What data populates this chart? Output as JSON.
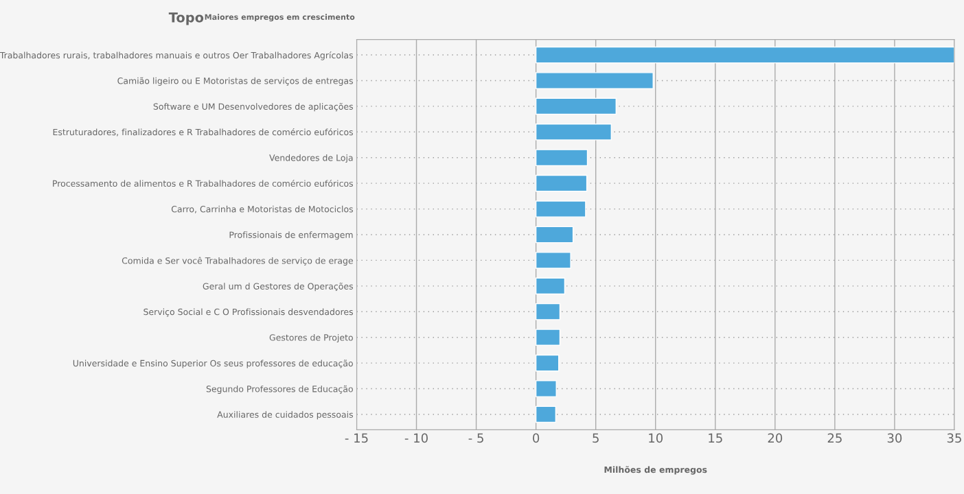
{
  "chart_data": {
    "type": "bar",
    "orientation": "horizontal",
    "title": "Topo",
    "subtitle": "Maiores empregos em crescimento",
    "xlabel": "Milhões de empregos",
    "categories": [
      "Trabalhadores rurais, trabalhadores manuais e outros Oer Trabalhadores Agrícolas",
      "Camião ligeiro ou E Motoristas de serviços de entregas",
      "Software e UM Desenvolvedores de aplicações",
      "Estruturadores, finalizadores e R Trabalhadores de comércio eufóricos",
      "Vendedores de Loja",
      "Processamento de alimentos e R Trabalhadores de comércio eufóricos",
      "Carro, Carrinha e Motoristas de Motociclos",
      "Profissionais de enfermagem",
      "Comida e Ser você Trabalhadores de serviço de erage",
      "Geral um d Gestores de Operações",
      "Serviço Social e C O Profissionais desvendadores",
      "Gestores de Projeto",
      "Universidade e Ensino Superior Os seus professores de educação",
      "Segundo Professores de Educação",
      "Auxiliares de cuidados pessoais"
    ],
    "values": [
      35,
      9.8,
      6.7,
      6.3,
      4.3,
      4.25,
      4.15,
      3.1,
      2.9,
      2.4,
      2.0,
      2.0,
      1.9,
      1.7,
      1.65
    ],
    "color": "#4ea8db",
    "xlim": [
      -15,
      35
    ],
    "xticks": [
      {
        "value": -15,
        "label": "- 15"
      },
      {
        "value": -10,
        "label": "- 10"
      },
      {
        "value": -5,
        "label": "- 5"
      },
      0,
      5,
      10,
      15,
      20,
      25,
      30,
      35
    ],
    "grid": true
  }
}
